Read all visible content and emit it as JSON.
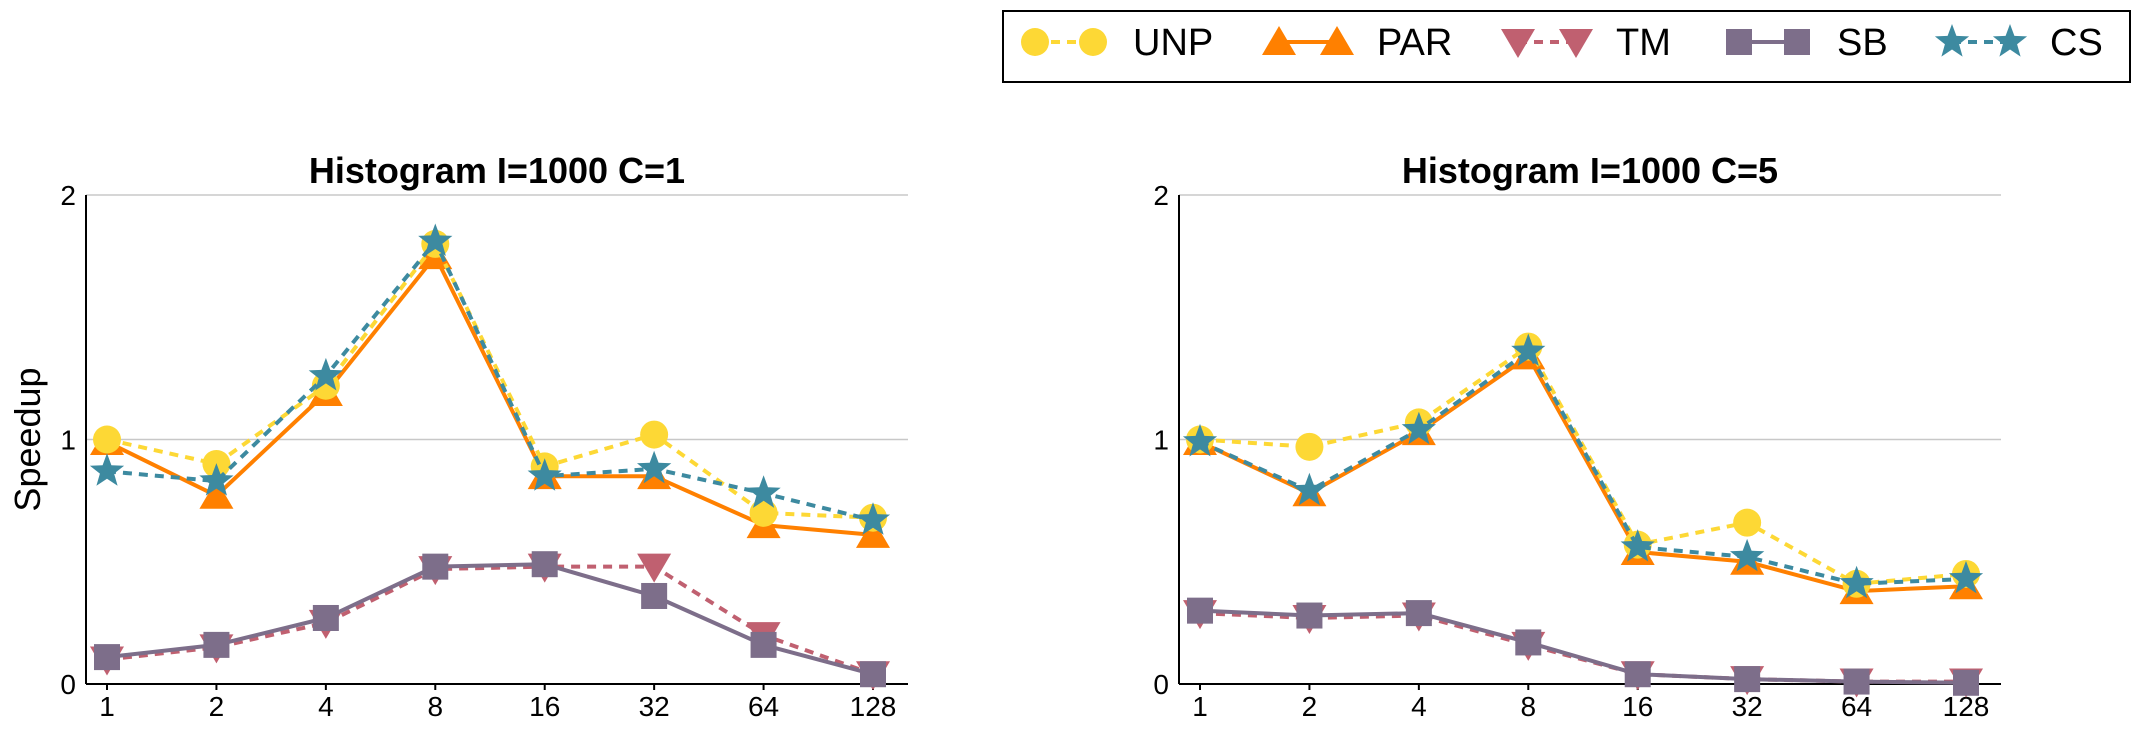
{
  "legend": {
    "entries": [
      {
        "label": "UNP",
        "color": "#fdd835",
        "marker": "circle",
        "dash": "dashed"
      },
      {
        "label": "PAR",
        "color": "#ff8000",
        "marker": "triangle-up",
        "dash": "solid"
      },
      {
        "label": "TM",
        "color": "#c06070",
        "marker": "triangle-down",
        "dash": "dashed"
      },
      {
        "label": "SB",
        "color": "#7d6e8a",
        "marker": "square",
        "dash": "solid"
      },
      {
        "label": "CS",
        "color": "#3d8aa0",
        "marker": "star",
        "dash": "dashed"
      }
    ]
  },
  "chart_data": [
    {
      "type": "line",
      "title": "Histogram I=1000 C=1",
      "ylabel": "Speedup",
      "xlabel": "",
      "categories": [
        "1",
        "2",
        "4",
        "8",
        "16",
        "32",
        "64",
        "128"
      ],
      "yticks": [
        "0",
        "1",
        "2"
      ],
      "ylim": [
        0,
        2
      ],
      "grid": "horizontal",
      "series": [
        {
          "name": "UNP",
          "values": [
            1.0,
            0.9,
            1.22,
            1.8,
            0.89,
            1.02,
            0.7,
            0.68
          ]
        },
        {
          "name": "PAR",
          "values": [
            0.99,
            0.77,
            1.19,
            1.75,
            0.85,
            0.85,
            0.65,
            0.61
          ]
        },
        {
          "name": "TM",
          "values": [
            0.1,
            0.15,
            0.25,
            0.47,
            0.48,
            0.48,
            0.2,
            0.04
          ]
        },
        {
          "name": "SB",
          "values": [
            0.11,
            0.16,
            0.27,
            0.48,
            0.49,
            0.36,
            0.16,
            0.04
          ]
        },
        {
          "name": "CS",
          "values": [
            0.87,
            0.83,
            1.26,
            1.81,
            0.85,
            0.88,
            0.78,
            0.67
          ]
        }
      ]
    },
    {
      "type": "line",
      "title": "Histogram I=1000 C=5",
      "ylabel": "",
      "xlabel": "",
      "categories": [
        "1",
        "2",
        "4",
        "8",
        "16",
        "32",
        "64",
        "128"
      ],
      "yticks": [
        "0",
        "1",
        "2"
      ],
      "ylim": [
        0,
        2
      ],
      "grid": "horizontal",
      "series": [
        {
          "name": "UNP",
          "values": [
            1.0,
            0.97,
            1.07,
            1.38,
            0.57,
            0.66,
            0.41,
            0.45
          ]
        },
        {
          "name": "PAR",
          "values": [
            0.99,
            0.78,
            1.03,
            1.34,
            0.54,
            0.5,
            0.38,
            0.4
          ]
        },
        {
          "name": "TM",
          "values": [
            0.29,
            0.27,
            0.28,
            0.16,
            0.04,
            0.02,
            0.01,
            0.01
          ]
        },
        {
          "name": "SB",
          "values": [
            0.3,
            0.28,
            0.29,
            0.17,
            0.04,
            0.02,
            0.01,
            0.005
          ]
        },
        {
          "name": "CS",
          "values": [
            0.99,
            0.79,
            1.04,
            1.36,
            0.56,
            0.52,
            0.41,
            0.43
          ]
        }
      ]
    }
  ]
}
